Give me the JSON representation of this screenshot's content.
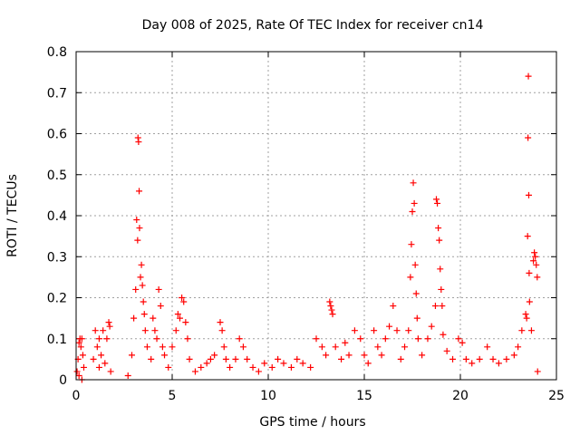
{
  "chart_data": {
    "type": "scatter",
    "title": "Day 008 of 2025, Rate Of TEC Index for receiver cn14",
    "xlabel": "GPS time / hours",
    "ylabel": "ROTI / TECUs",
    "xlim": [
      0,
      25
    ],
    "ylim": [
      0,
      0.8
    ],
    "x_ticks": [
      0,
      5,
      10,
      15,
      20,
      25
    ],
    "y_ticks": [
      0,
      0.1,
      0.2,
      0.3,
      0.4,
      0.5,
      0.6,
      0.7,
      0.8
    ],
    "x_tick_labels": [
      "0",
      "5",
      "10",
      "15",
      "20",
      "25"
    ],
    "y_tick_labels": [
      "0",
      "0.1",
      "0.2",
      "0.3",
      "0.4",
      "0.5",
      "0.6",
      "0.7",
      "0.8"
    ],
    "grid": true,
    "marker": "+",
    "series": [
      {
        "color": "#ff0000",
        "points": [
          [
            0.05,
            0.02
          ],
          [
            0.1,
            0.05
          ],
          [
            0.15,
            0.09
          ],
          [
            0.2,
            0.1
          ],
          [
            0.25,
            0.08
          ],
          [
            0.3,
            0.1
          ],
          [
            0.35,
            0.06
          ],
          [
            0.4,
            0.03
          ],
          [
            0.15,
            0.01
          ],
          [
            0.3,
            0.0
          ],
          [
            0.9,
            0.05
          ],
          [
            1.0,
            0.12
          ],
          [
            1.1,
            0.08
          ],
          [
            1.2,
            0.1
          ],
          [
            1.3,
            0.06
          ],
          [
            1.4,
            0.12
          ],
          [
            1.5,
            0.04
          ],
          [
            1.6,
            0.1
          ],
          [
            1.7,
            0.14
          ],
          [
            1.75,
            0.13
          ],
          [
            1.8,
            0.02
          ],
          [
            1.2,
            0.03
          ],
          [
            2.7,
            0.01
          ],
          [
            2.9,
            0.06
          ],
          [
            3.0,
            0.15
          ],
          [
            3.1,
            0.22
          ],
          [
            3.15,
            0.39
          ],
          [
            3.2,
            0.34
          ],
          [
            3.22,
            0.59
          ],
          [
            3.25,
            0.58
          ],
          [
            3.28,
            0.46
          ],
          [
            3.3,
            0.37
          ],
          [
            3.35,
            0.25
          ],
          [
            3.4,
            0.28
          ],
          [
            3.45,
            0.23
          ],
          [
            3.5,
            0.19
          ],
          [
            3.55,
            0.16
          ],
          [
            3.6,
            0.12
          ],
          [
            3.7,
            0.08
          ],
          [
            3.9,
            0.05
          ],
          [
            4.0,
            0.15
          ],
          [
            4.1,
            0.12
          ],
          [
            4.2,
            0.1
          ],
          [
            4.3,
            0.22
          ],
          [
            4.4,
            0.18
          ],
          [
            4.5,
            0.08
          ],
          [
            4.6,
            0.06
          ],
          [
            4.8,
            0.03
          ],
          [
            5.0,
            0.08
          ],
          [
            5.2,
            0.12
          ],
          [
            5.3,
            0.16
          ],
          [
            5.4,
            0.15
          ],
          [
            5.5,
            0.2
          ],
          [
            5.6,
            0.19
          ],
          [
            5.7,
            0.14
          ],
          [
            5.8,
            0.1
          ],
          [
            5.9,
            0.05
          ],
          [
            6.2,
            0.02
          ],
          [
            6.5,
            0.03
          ],
          [
            6.8,
            0.04
          ],
          [
            7.0,
            0.05
          ],
          [
            7.2,
            0.06
          ],
          [
            7.5,
            0.14
          ],
          [
            7.6,
            0.12
          ],
          [
            7.7,
            0.08
          ],
          [
            7.8,
            0.05
          ],
          [
            8.0,
            0.03
          ],
          [
            8.3,
            0.05
          ],
          [
            8.5,
            0.1
          ],
          [
            8.7,
            0.08
          ],
          [
            8.9,
            0.05
          ],
          [
            9.2,
            0.03
          ],
          [
            9.5,
            0.02
          ],
          [
            9.8,
            0.04
          ],
          [
            10.2,
            0.03
          ],
          [
            10.5,
            0.05
          ],
          [
            10.8,
            0.04
          ],
          [
            11.2,
            0.03
          ],
          [
            11.5,
            0.05
          ],
          [
            11.8,
            0.04
          ],
          [
            12.2,
            0.03
          ],
          [
            12.5,
            0.1
          ],
          [
            12.8,
            0.08
          ],
          [
            13.0,
            0.06
          ],
          [
            13.2,
            0.19
          ],
          [
            13.25,
            0.18
          ],
          [
            13.3,
            0.17
          ],
          [
            13.35,
            0.16
          ],
          [
            13.5,
            0.08
          ],
          [
            13.8,
            0.05
          ],
          [
            14.0,
            0.09
          ],
          [
            14.2,
            0.06
          ],
          [
            14.5,
            0.12
          ],
          [
            14.8,
            0.1
          ],
          [
            15.0,
            0.06
          ],
          [
            15.2,
            0.04
          ],
          [
            15.5,
            0.12
          ],
          [
            15.7,
            0.08
          ],
          [
            15.9,
            0.06
          ],
          [
            16.1,
            0.1
          ],
          [
            16.3,
            0.13
          ],
          [
            16.5,
            0.18
          ],
          [
            16.7,
            0.12
          ],
          [
            16.9,
            0.05
          ],
          [
            17.1,
            0.08
          ],
          [
            17.3,
            0.12
          ],
          [
            17.4,
            0.25
          ],
          [
            17.45,
            0.33
          ],
          [
            17.5,
            0.41
          ],
          [
            17.55,
            0.48
          ],
          [
            17.6,
            0.43
          ],
          [
            17.65,
            0.28
          ],
          [
            17.7,
            0.21
          ],
          [
            17.75,
            0.15
          ],
          [
            17.8,
            0.1
          ],
          [
            18.0,
            0.06
          ],
          [
            18.3,
            0.1
          ],
          [
            18.5,
            0.13
          ],
          [
            18.7,
            0.18
          ],
          [
            18.75,
            0.44
          ],
          [
            18.8,
            0.43
          ],
          [
            18.85,
            0.37
          ],
          [
            18.9,
            0.34
          ],
          [
            18.95,
            0.27
          ],
          [
            19.0,
            0.22
          ],
          [
            19.05,
            0.18
          ],
          [
            19.1,
            0.11
          ],
          [
            19.3,
            0.07
          ],
          [
            19.6,
            0.05
          ],
          [
            19.9,
            0.1
          ],
          [
            20.1,
            0.09
          ],
          [
            20.3,
            0.05
          ],
          [
            20.6,
            0.04
          ],
          [
            21.0,
            0.05
          ],
          [
            21.4,
            0.08
          ],
          [
            21.7,
            0.05
          ],
          [
            22.0,
            0.04
          ],
          [
            22.4,
            0.05
          ],
          [
            22.8,
            0.06
          ],
          [
            23.0,
            0.08
          ],
          [
            23.2,
            0.12
          ],
          [
            23.4,
            0.16
          ],
          [
            23.45,
            0.15
          ],
          [
            23.5,
            0.35
          ],
          [
            23.52,
            0.59
          ],
          [
            23.54,
            0.74
          ],
          [
            23.56,
            0.45
          ],
          [
            23.58,
            0.26
          ],
          [
            23.6,
            0.19
          ],
          [
            23.7,
            0.12
          ],
          [
            23.8,
            0.29
          ],
          [
            23.85,
            0.31
          ],
          [
            23.9,
            0.3
          ],
          [
            23.95,
            0.28
          ],
          [
            24.0,
            0.25
          ],
          [
            24.02,
            0.02
          ]
        ]
      }
    ]
  }
}
